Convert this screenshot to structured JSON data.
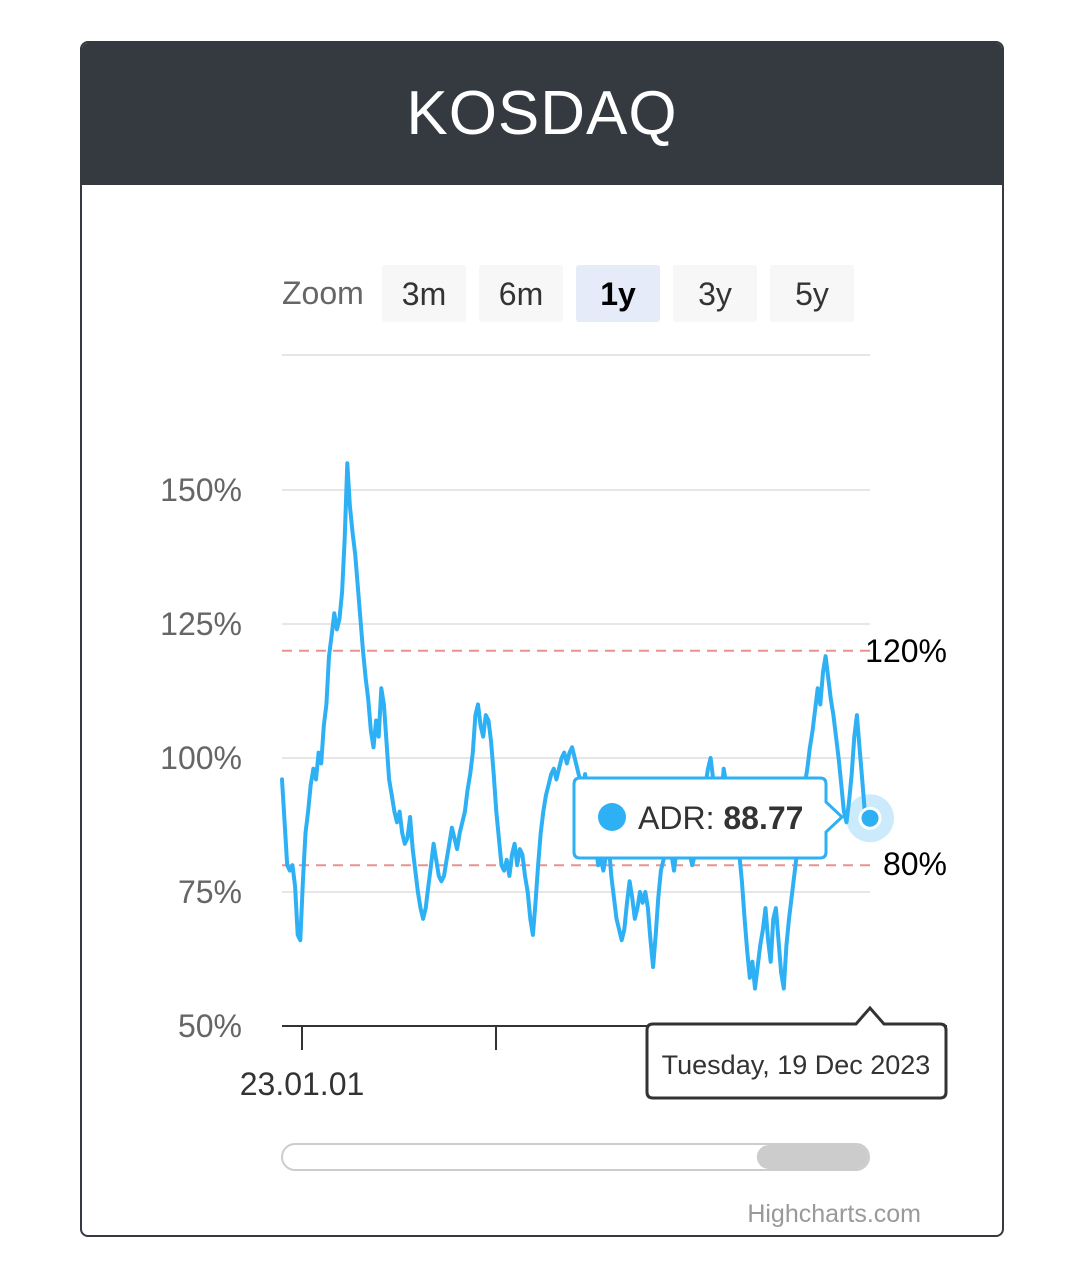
{
  "header": {
    "title": "KOSDAQ"
  },
  "zoom": {
    "label": "Zoom",
    "buttons": [
      {
        "label": "3m",
        "active": false
      },
      {
        "label": "6m",
        "active": false
      },
      {
        "label": "1y",
        "active": true
      },
      {
        "label": "3y",
        "active": false
      },
      {
        "label": "5y",
        "active": false
      }
    ]
  },
  "tooltip": {
    "series": "ADR",
    "separator": ": ",
    "value": "88.77",
    "date": "Tuesday, 19 Dec 2023"
  },
  "credits": "Highcharts.com",
  "colors": {
    "line": "#2eb0f5",
    "band": "#e8938f",
    "header": "#343a40",
    "active_zoom": "#e6ebfa"
  },
  "chart_data": {
    "type": "line",
    "title": "KOSDAQ",
    "series": [
      {
        "name": "ADR",
        "x_start": "2023-01-01",
        "x_end": "2023-12-19",
        "values": [
          96,
          88,
          80,
          79,
          80,
          76,
          67,
          66,
          77,
          86,
          90,
          95,
          98,
          96,
          101,
          99,
          106,
          110,
          119,
          123,
          127,
          124,
          126,
          131,
          141,
          155,
          147,
          142,
          138,
          132,
          126,
          120,
          115,
          111,
          105,
          102,
          107,
          104,
          113,
          110,
          103,
          96,
          93,
          90,
          88,
          90,
          86,
          84,
          85,
          89,
          83,
          79,
          75,
          72,
          70,
          72,
          76,
          80,
          84,
          81,
          78,
          77,
          78,
          81,
          84,
          87,
          85,
          83,
          86,
          88,
          90,
          94,
          97,
          101,
          108,
          110,
          106,
          104,
          108,
          107,
          103,
          97,
          90,
          85,
          80,
          79,
          81,
          78,
          82,
          84,
          80,
          83,
          82,
          78,
          75,
          70,
          67,
          73,
          80,
          86,
          90,
          93,
          95,
          97,
          98,
          96,
          98,
          100,
          101,
          99,
          101,
          102,
          100,
          98,
          96,
          94,
          97,
          93,
          89,
          86,
          84,
          80,
          81,
          79,
          82,
          84,
          78,
          74,
          70,
          68,
          66,
          68,
          73,
          77,
          74,
          70,
          72,
          75,
          73,
          75,
          72,
          66,
          61,
          67,
          74,
          79,
          81,
          85,
          87,
          82,
          79,
          83,
          86,
          84,
          89,
          85,
          82,
          80,
          82,
          85,
          87,
          90,
          95,
          98,
          100,
          96,
          93,
          96,
          92,
          98,
          95,
          96,
          94,
          91,
          86,
          82,
          77,
          70,
          64,
          59,
          62,
          57,
          61,
          65,
          68,
          72,
          66,
          62,
          70,
          72,
          66,
          60,
          57,
          65,
          70,
          74,
          78,
          82,
          86,
          90,
          95,
          98,
          102,
          105,
          109,
          113,
          110,
          116,
          119,
          115,
          111,
          108,
          104,
          100,
          95,
          90,
          88,
          92,
          97,
          104,
          108,
          102,
          96,
          90,
          88,
          89
        ]
      }
    ],
    "x_tick_labels": [
      "23.01.01"
    ],
    "y_tick_labels": [
      "50%",
      "75%",
      "100%",
      "125%",
      "150%"
    ],
    "y_ticks": [
      50,
      75,
      100,
      125,
      150
    ],
    "ylim": [
      50,
      150
    ],
    "plot_lines": [
      {
        "value": 120,
        "label": "120%"
      },
      {
        "value": 80,
        "label": "80%"
      }
    ],
    "highlight_point": {
      "value": 88.77,
      "date": "Tuesday, 19 Dec 2023"
    },
    "navigator_range": [
      0.81,
      1.0
    ],
    "grid": true
  }
}
